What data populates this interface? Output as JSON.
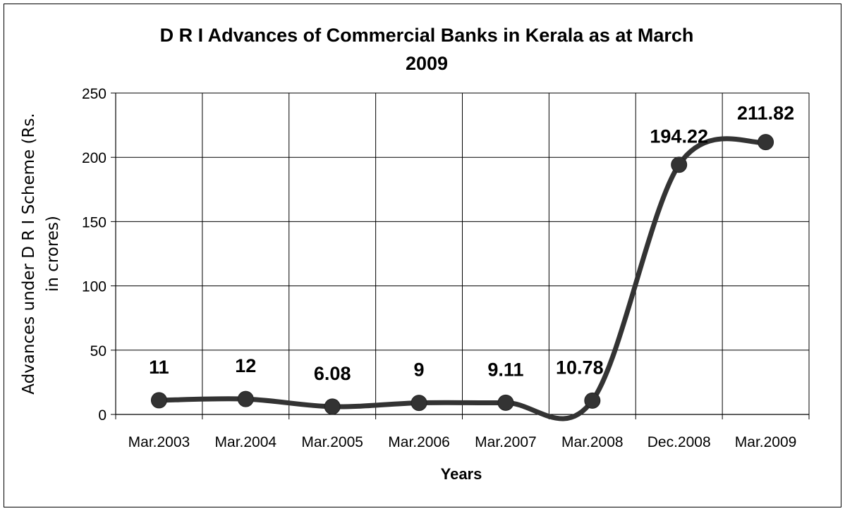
{
  "chart_data": {
    "type": "line",
    "title_lines": [
      "D R I Advances of Commercial Banks in Kerala as at March",
      "2009"
    ],
    "xlabel": "Years",
    "ylabel_lines": [
      "Advances under D R I Scheme (Rs.",
      "in crores)"
    ],
    "categories": [
      "Mar.2003",
      "Mar.2004",
      "Mar.2005",
      "Mar.2006",
      "Mar.2007",
      "Mar.2008",
      "Dec.2008",
      "Mar.2009"
    ],
    "values": [
      11,
      12,
      6.08,
      9,
      9.11,
      10.78,
      194.22,
      211.82
    ],
    "data_labels": [
      "11",
      "12",
      "6.08",
      "9",
      "9.11",
      "10.78",
      "194.22",
      "211.82"
    ],
    "ylim": [
      0,
      250
    ],
    "yticks": [
      "0",
      "50",
      "100",
      "150",
      "200",
      "250"
    ],
    "grid": true,
    "smoothed": true,
    "line_color": "#333333",
    "marker_color": "#333333"
  }
}
